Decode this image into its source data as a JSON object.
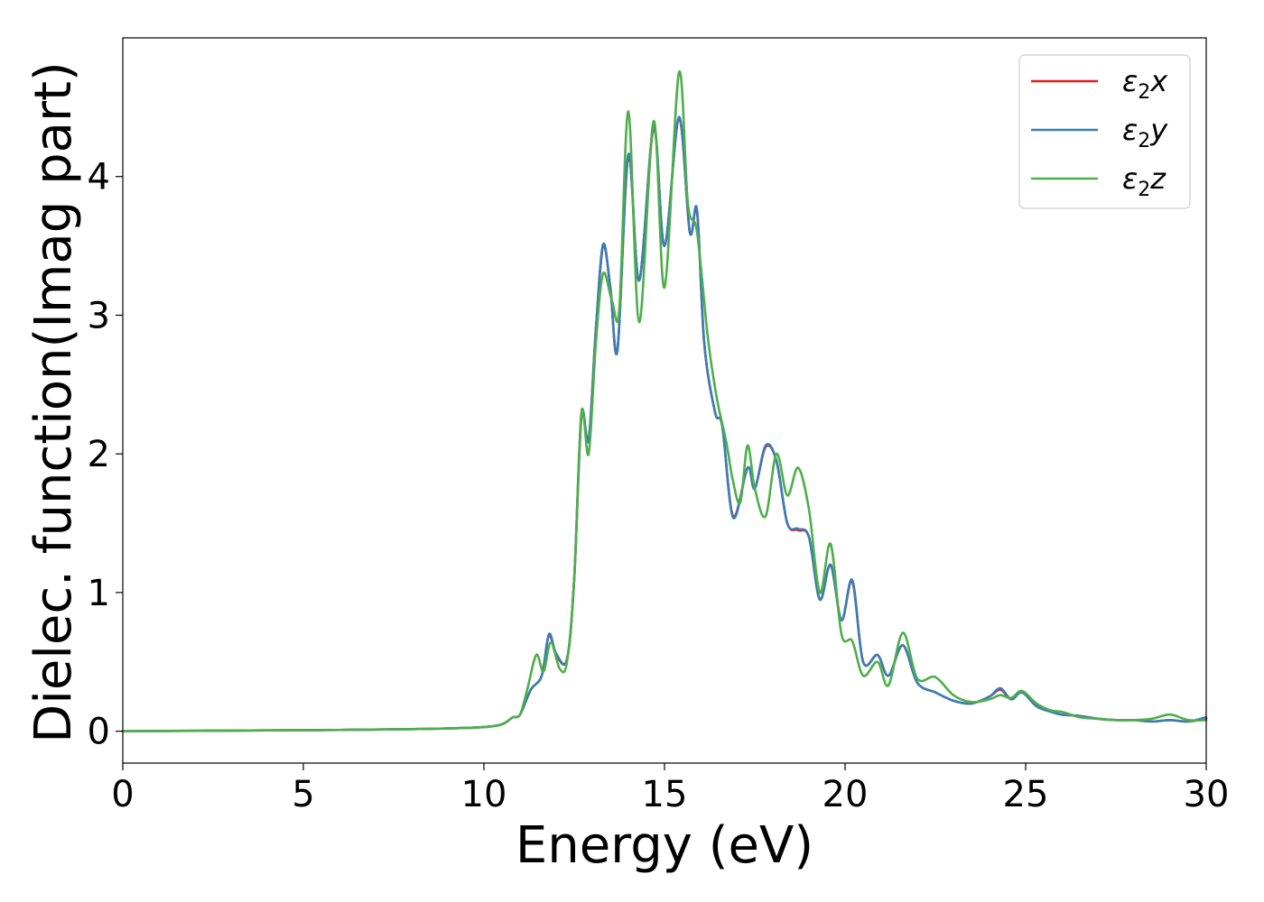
{
  "chart_data": {
    "type": "line",
    "title": "",
    "xlabel": "Energy (eV)",
    "ylabel": "Dielec. function(Imag part)",
    "xlim": [
      0,
      30
    ],
    "ylim": [
      -0.23,
      5.0
    ],
    "xticks": [
      0,
      5,
      10,
      15,
      20,
      25,
      30
    ],
    "yticks": [
      0,
      1,
      2,
      3,
      4
    ],
    "grid": false,
    "legend_position": "top-right",
    "series": [
      {
        "name": "ε2x",
        "label_base": "ε",
        "label_sub": "2",
        "label_var": "x",
        "color": "#e41a1c",
        "x": [
          0,
          2,
          4,
          6,
          8,
          9,
          10,
          10.5,
          10.8,
          11.0,
          11.3,
          11.6,
          11.8,
          12.0,
          12.3,
          12.5,
          12.7,
          12.9,
          13.1,
          13.3,
          13.5,
          13.7,
          14.0,
          14.3,
          14.7,
          15.0,
          15.4,
          15.7,
          15.9,
          16.1,
          16.4,
          16.6,
          16.9,
          17.3,
          17.5,
          17.8,
          18.1,
          18.4,
          18.7,
          19.0,
          19.3,
          19.6,
          19.9,
          20.2,
          20.5,
          20.9,
          21.2,
          21.6,
          22.0,
          22.5,
          23.0,
          23.5,
          24.0,
          24.3,
          24.6,
          24.9,
          25.3,
          25.7,
          26.0,
          26.5,
          27.0,
          27.5,
          28.0,
          28.5,
          29.0,
          29.5,
          30.0
        ],
        "y": [
          0,
          0.003,
          0.006,
          0.009,
          0.015,
          0.02,
          0.03,
          0.05,
          0.1,
          0.12,
          0.3,
          0.4,
          0.69,
          0.55,
          0.52,
          1.1,
          2.27,
          2.1,
          2.9,
          3.5,
          3.2,
          2.76,
          4.15,
          3.25,
          4.35,
          3.5,
          4.42,
          3.6,
          3.75,
          2.8,
          2.3,
          2.2,
          1.55,
          1.9,
          1.75,
          2.05,
          1.95,
          1.5,
          1.45,
          1.4,
          0.95,
          1.2,
          0.8,
          1.08,
          0.5,
          0.55,
          0.4,
          0.62,
          0.35,
          0.28,
          0.22,
          0.2,
          0.25,
          0.3,
          0.23,
          0.28,
          0.18,
          0.14,
          0.12,
          0.11,
          0.09,
          0.08,
          0.08,
          0.07,
          0.08,
          0.07,
          0.09
        ]
      },
      {
        "name": "ε2y",
        "label_base": "ε",
        "label_sub": "2",
        "label_var": "y",
        "color": "#377eb8",
        "x": [
          0,
          2,
          4,
          6,
          8,
          9,
          10,
          10.5,
          10.8,
          11.0,
          11.3,
          11.6,
          11.8,
          12.0,
          12.3,
          12.5,
          12.7,
          12.9,
          13.1,
          13.3,
          13.5,
          13.7,
          14.0,
          14.3,
          14.7,
          15.0,
          15.4,
          15.7,
          15.9,
          16.1,
          16.4,
          16.6,
          16.9,
          17.3,
          17.5,
          17.8,
          18.1,
          18.4,
          18.7,
          19.0,
          19.3,
          19.6,
          19.9,
          20.2,
          20.5,
          20.9,
          21.2,
          21.6,
          22.0,
          22.5,
          23.0,
          23.5,
          24.0,
          24.3,
          24.6,
          24.9,
          25.3,
          25.7,
          26.0,
          26.5,
          27.0,
          27.5,
          28.0,
          28.5,
          29.0,
          29.5,
          30.0
        ],
        "y": [
          0,
          0.003,
          0.006,
          0.009,
          0.015,
          0.02,
          0.03,
          0.05,
          0.1,
          0.12,
          0.3,
          0.4,
          0.7,
          0.56,
          0.52,
          1.1,
          2.28,
          2.1,
          2.9,
          3.51,
          3.2,
          2.75,
          4.16,
          3.25,
          4.36,
          3.5,
          4.43,
          3.6,
          3.76,
          2.8,
          2.3,
          2.2,
          1.54,
          1.9,
          1.75,
          2.06,
          1.95,
          1.5,
          1.46,
          1.4,
          0.95,
          1.2,
          0.8,
          1.09,
          0.5,
          0.55,
          0.4,
          0.62,
          0.35,
          0.28,
          0.22,
          0.2,
          0.25,
          0.31,
          0.23,
          0.28,
          0.18,
          0.14,
          0.12,
          0.11,
          0.09,
          0.08,
          0.08,
          0.07,
          0.08,
          0.07,
          0.1
        ]
      },
      {
        "name": "ε2z",
        "label_base": "ε",
        "label_sub": "2",
        "label_var": "z",
        "color": "#4daf4a",
        "x": [
          0,
          2,
          4,
          6,
          8,
          9,
          10,
          10.5,
          10.8,
          11.0,
          11.2,
          11.45,
          11.65,
          11.85,
          12.1,
          12.3,
          12.5,
          12.7,
          12.9,
          13.1,
          13.3,
          13.55,
          13.75,
          14.0,
          14.3,
          14.7,
          15.0,
          15.4,
          15.65,
          15.9,
          16.2,
          16.45,
          16.7,
          16.9,
          17.1,
          17.3,
          17.5,
          17.8,
          18.1,
          18.4,
          18.7,
          19.0,
          19.3,
          19.6,
          19.9,
          20.2,
          20.5,
          20.9,
          21.2,
          21.6,
          22.0,
          22.5,
          23.0,
          23.5,
          24.0,
          24.3,
          24.6,
          24.9,
          25.3,
          25.7,
          26.0,
          26.5,
          27.0,
          27.5,
          28.0,
          28.5,
          29.0,
          29.5,
          30.0
        ],
        "y": [
          0,
          0.003,
          0.006,
          0.009,
          0.015,
          0.02,
          0.03,
          0.05,
          0.1,
          0.12,
          0.3,
          0.55,
          0.43,
          0.64,
          0.45,
          0.5,
          1.1,
          2.3,
          2.0,
          2.8,
          3.3,
          3.1,
          3.05,
          4.47,
          2.95,
          4.4,
          3.2,
          4.75,
          3.8,
          3.6,
          2.84,
          2.4,
          2.1,
          1.8,
          1.65,
          2.06,
          1.75,
          1.55,
          2.0,
          1.7,
          1.9,
          1.6,
          1.0,
          1.35,
          0.7,
          0.65,
          0.4,
          0.5,
          0.33,
          0.71,
          0.38,
          0.39,
          0.26,
          0.21,
          0.23,
          0.26,
          0.24,
          0.29,
          0.2,
          0.15,
          0.14,
          0.1,
          0.09,
          0.08,
          0.08,
          0.09,
          0.12,
          0.08,
          0.08
        ]
      }
    ]
  }
}
